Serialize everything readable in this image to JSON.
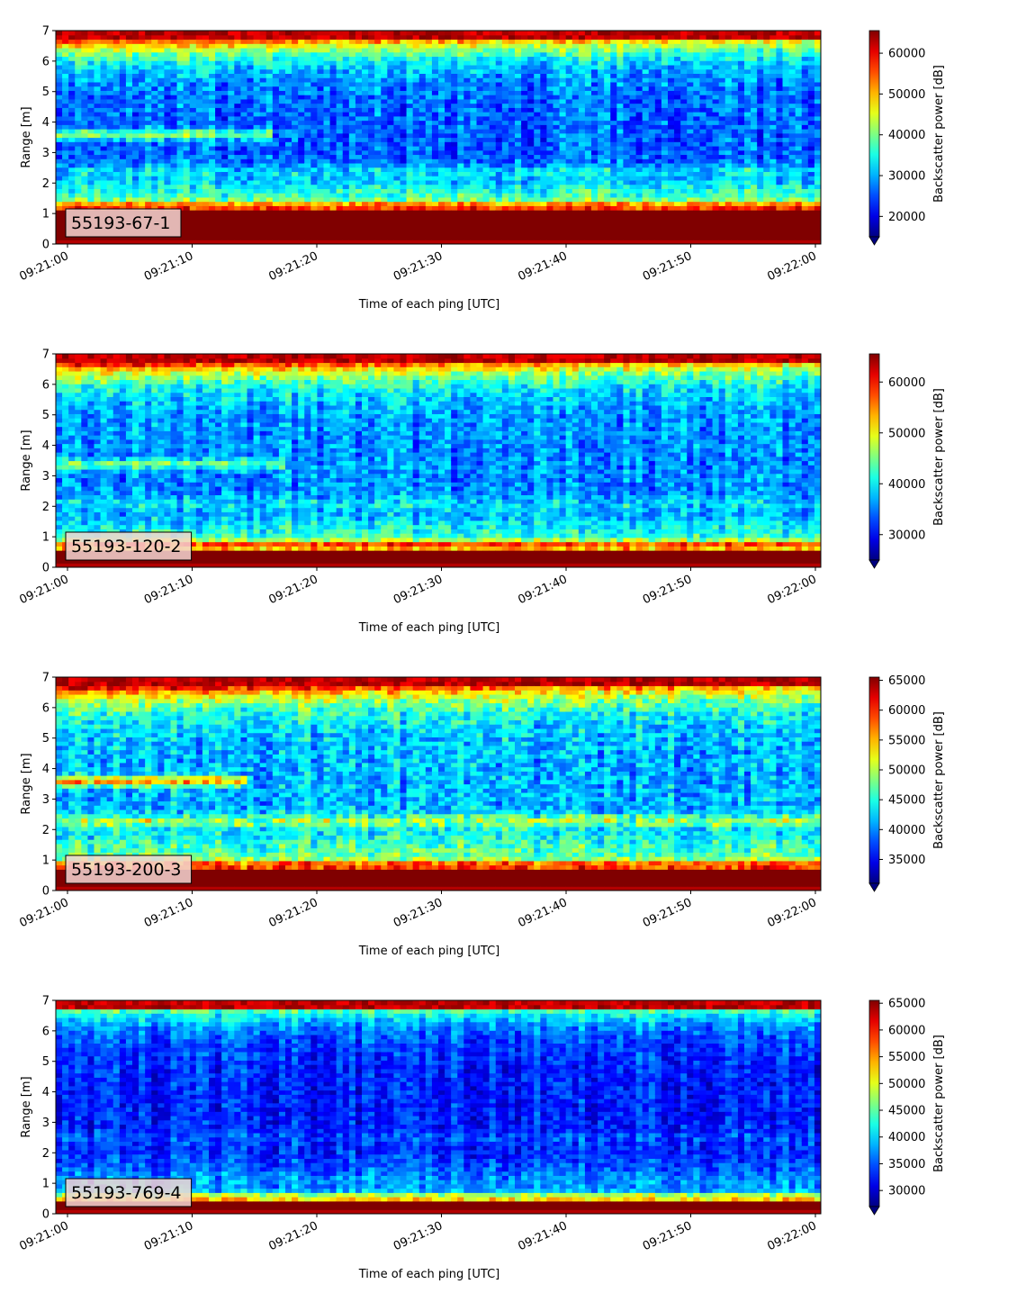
{
  "chart_data": [
    {
      "type": "heatmap",
      "label": "55193-67-1",
      "xlabel": "Time of each ping [UTC]",
      "ylabel": "Range [m]",
      "x_ticks": [
        "09:21:00",
        "09:21:10",
        "09:21:20",
        "09:21:30",
        "09:21:40",
        "09:21:50",
        "09:22:00"
      ],
      "y_ticks": [
        "0",
        "1",
        "2",
        "3",
        "4",
        "5",
        "6",
        "7"
      ],
      "ylim": [
        0,
        7
      ],
      "colorbar": {
        "label": "Backscatter power [dB]",
        "ticks": [
          "20000",
          "30000",
          "40000",
          "50000",
          "60000"
        ],
        "range": [
          15000,
          65535
        ],
        "extend": "min",
        "colormap": "jet"
      },
      "structure": {
        "seabed_band_m": [
          0.2,
          1.1
        ],
        "surface_band_m": [
          6.6,
          7.0
        ],
        "persistent_layer_m": 3.6
      }
    },
    {
      "type": "heatmap",
      "label": "55193-120-2",
      "xlabel": "Time of each ping [UTC]",
      "ylabel": "Range [m]",
      "x_ticks": [
        "09:21:00",
        "09:21:10",
        "09:21:20",
        "09:21:30",
        "09:21:40",
        "09:21:50",
        "09:22:00"
      ],
      "y_ticks": [
        "0",
        "1",
        "2",
        "3",
        "4",
        "5",
        "6",
        "7"
      ],
      "ylim": [
        0,
        7
      ],
      "colorbar": {
        "label": "Backscatter power [dB]",
        "ticks": [
          "30000",
          "40000",
          "50000",
          "60000"
        ],
        "range": [
          25000,
          65535
        ],
        "extend": "min",
        "colormap": "jet"
      },
      "structure": {
        "seabed_band_m": [
          0.1,
          0.6
        ],
        "surface_band_m": [
          6.6,
          7.0
        ],
        "persistent_layer_m": 3.4
      }
    },
    {
      "type": "heatmap",
      "label": "55193-200-3",
      "xlabel": "Time of each ping [UTC]",
      "ylabel": "Range [m]",
      "x_ticks": [
        "09:21:00",
        "09:21:10",
        "09:21:20",
        "09:21:30",
        "09:21:40",
        "09:21:50",
        "09:22:00"
      ],
      "y_ticks": [
        "0",
        "1",
        "2",
        "3",
        "4",
        "5",
        "6",
        "7"
      ],
      "ylim": [
        0,
        7
      ],
      "colorbar": {
        "label": "Backscatter power [dB]",
        "ticks": [
          "35000",
          "40000",
          "45000",
          "50000",
          "55000",
          "60000",
          "65000"
        ],
        "range": [
          31000,
          65535
        ],
        "extend": "min",
        "colormap": "jet"
      },
      "structure": {
        "seabed_band_m": [
          0.2,
          0.7
        ],
        "surface_band_m": [
          6.6,
          7.0
        ],
        "persistent_layer_m": 3.6
      }
    },
    {
      "type": "heatmap",
      "label": "55193-769-4",
      "xlabel": "Time of each ping [UTC]",
      "ylabel": "Range [m]",
      "x_ticks": [
        "09:21:00",
        "09:21:10",
        "09:21:20",
        "09:21:30",
        "09:21:40",
        "09:21:50",
        "09:22:00"
      ],
      "y_ticks": [
        "0",
        "1",
        "2",
        "3",
        "4",
        "5",
        "6",
        "7"
      ],
      "ylim": [
        0,
        7
      ],
      "colorbar": {
        "label": "Backscatter power [dB]",
        "ticks": [
          "30000",
          "35000",
          "40000",
          "45000",
          "50000",
          "55000",
          "60000",
          "65000"
        ],
        "range": [
          27000,
          65535
        ],
        "extend": "min",
        "colormap": "jet"
      },
      "structure": {
        "seabed_band_m": [
          0.2,
          0.4
        ],
        "surface_band_m": [
          6.6,
          7.0
        ],
        "persistent_layer_m": null
      }
    }
  ]
}
